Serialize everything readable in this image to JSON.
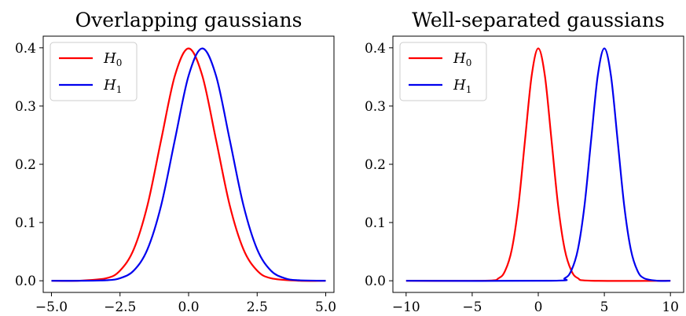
{
  "chart_data": [
    {
      "type": "line",
      "title": "Overlapping gaussians",
      "xlabel": "",
      "ylabel": "",
      "xlim": [
        -5.3,
        5.3
      ],
      "ylim": [
        -0.02,
        0.42
      ],
      "xticks": [
        -5.0,
        -2.5,
        0.0,
        2.5,
        5.0
      ],
      "xtick_labels": [
        "−5.0",
        "−2.5",
        "0.0",
        "2.5",
        "5.0"
      ],
      "yticks": [
        0.0,
        0.1,
        0.2,
        0.3,
        0.4
      ],
      "ytick_labels": [
        "0.0",
        "0.1",
        "0.2",
        "0.3",
        "0.4"
      ],
      "grid": false,
      "legend_position": "top-left",
      "series": [
        {
          "name": "H0",
          "color": "#ff0000",
          "x": [
            -5.0,
            -4.0,
            -3.0,
            -2.5,
            -2.0,
            -1.5,
            -1.0,
            -0.5,
            0.0,
            0.5,
            1.0,
            1.5,
            2.0,
            2.5,
            3.0,
            4.0,
            5.0
          ],
          "y": [
            0.0,
            0.0001,
            0.0044,
            0.0175,
            0.054,
            0.1295,
            0.242,
            0.3521,
            0.3989,
            0.3521,
            0.242,
            0.1295,
            0.054,
            0.0175,
            0.0044,
            0.0001,
            0.0
          ]
        },
        {
          "name": "H1",
          "color": "#0000ee",
          "x": [
            -5.0,
            -4.0,
            -3.0,
            -2.5,
            -2.0,
            -1.5,
            -1.0,
            -0.5,
            0.0,
            0.5,
            1.0,
            1.5,
            2.0,
            2.5,
            3.0,
            3.5,
            4.0,
            5.0
          ],
          "y": [
            0.0,
            0.0,
            0.0009,
            0.0044,
            0.0175,
            0.054,
            0.1295,
            0.242,
            0.3521,
            0.3989,
            0.3521,
            0.242,
            0.1295,
            0.054,
            0.0175,
            0.0044,
            0.0009,
            0.0
          ]
        }
      ]
    },
    {
      "type": "line",
      "title": "Well-separated gaussians",
      "xlabel": "",
      "ylabel": "",
      "xlim": [
        -11,
        11
      ],
      "ylim": [
        -0.02,
        0.42
      ],
      "xticks": [
        -10,
        -5,
        0,
        5,
        10
      ],
      "xtick_labels": [
        "−10",
        "−5",
        "0",
        "5",
        "10"
      ],
      "yticks": [
        0.0,
        0.1,
        0.2,
        0.3,
        0.4
      ],
      "ytick_labels": [
        "0.0",
        "0.1",
        "0.2",
        "0.3",
        "0.4"
      ],
      "grid": false,
      "legend_position": "top-left",
      "series": [
        {
          "name": "H0",
          "color": "#ff0000",
          "x": [
            -10,
            -4,
            -3,
            -2.5,
            -2,
            -1.5,
            -1,
            -0.5,
            0,
            0.5,
            1,
            1.5,
            2,
            2.5,
            3,
            4,
            10
          ],
          "y": [
            0.0,
            0.0001,
            0.0044,
            0.0175,
            0.054,
            0.1295,
            0.242,
            0.3521,
            0.3989,
            0.3521,
            0.242,
            0.1295,
            0.054,
            0.0175,
            0.0044,
            0.0001,
            0.0
          ]
        },
        {
          "name": "H1",
          "color": "#0000ee",
          "x": [
            -10,
            1,
            2,
            2.5,
            3,
            3.5,
            4,
            4.5,
            5,
            5.5,
            6,
            6.5,
            7,
            7.5,
            8,
            9,
            10
          ],
          "y": [
            0.0,
            0.0001,
            0.0044,
            0.0175,
            0.054,
            0.1295,
            0.242,
            0.3521,
            0.3989,
            0.3521,
            0.242,
            0.1295,
            0.054,
            0.0175,
            0.0044,
            0.0001,
            0.0
          ]
        }
      ]
    }
  ]
}
